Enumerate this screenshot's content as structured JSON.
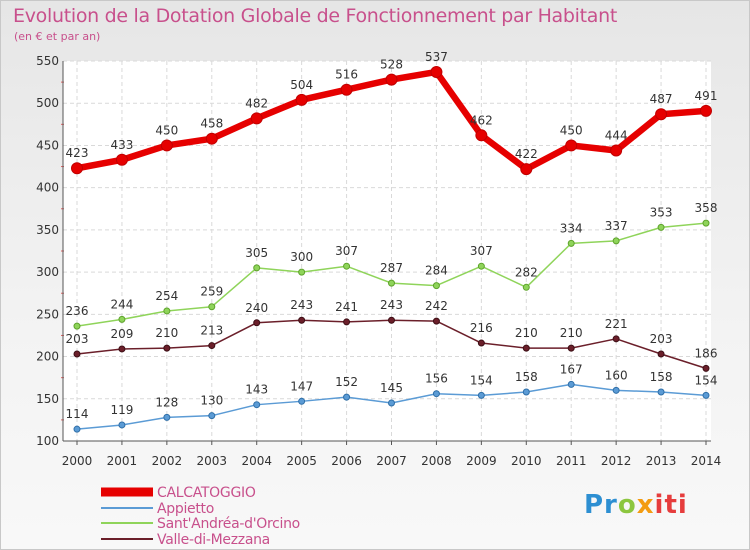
{
  "chart_data": {
    "type": "line",
    "title": "Evolution de la Dotation Globale de Fonctionnement par Habitant",
    "subtitle": "(en € et par an)",
    "x": [
      "2000",
      "2001",
      "2002",
      "2003",
      "2004",
      "2005",
      "2006",
      "2007",
      "2008",
      "2009",
      "2010",
      "2011",
      "2012",
      "2013",
      "2014"
    ],
    "ylim": [
      100,
      550
    ],
    "yticks": [
      "100",
      "150",
      "200",
      "250",
      "300",
      "350",
      "400",
      "450",
      "500",
      "550"
    ],
    "grid": true,
    "legend_position": "bottom-left",
    "series": [
      {
        "name": "CALCATOGGIO",
        "color": "#e60000",
        "values": [
          423,
          433,
          450,
          458,
          482,
          504,
          516,
          528,
          537,
          462,
          422,
          450,
          444,
          487,
          491
        ]
      },
      {
        "name": "Appietto",
        "color": "#5b9bd5",
        "values": [
          114,
          119,
          128,
          130,
          143,
          147,
          152,
          145,
          156,
          154,
          158,
          167,
          160,
          158,
          154
        ]
      },
      {
        "name": "Sant'Andréa-d'Orcino",
        "color": "#8fd45a",
        "values": [
          236,
          244,
          254,
          259,
          305,
          300,
          307,
          287,
          284,
          307,
          282,
          334,
          337,
          353,
          358
        ]
      },
      {
        "name": "Valle-di-Mezzana",
        "color": "#6b1f2a",
        "values": [
          203,
          209,
          210,
          213,
          240,
          243,
          241,
          243,
          242,
          216,
          210,
          210,
          221,
          203,
          186
        ]
      }
    ]
  },
  "logo": {
    "p1": "Pr",
    "p2": "o",
    "p3": "x",
    "p4": "iti"
  }
}
